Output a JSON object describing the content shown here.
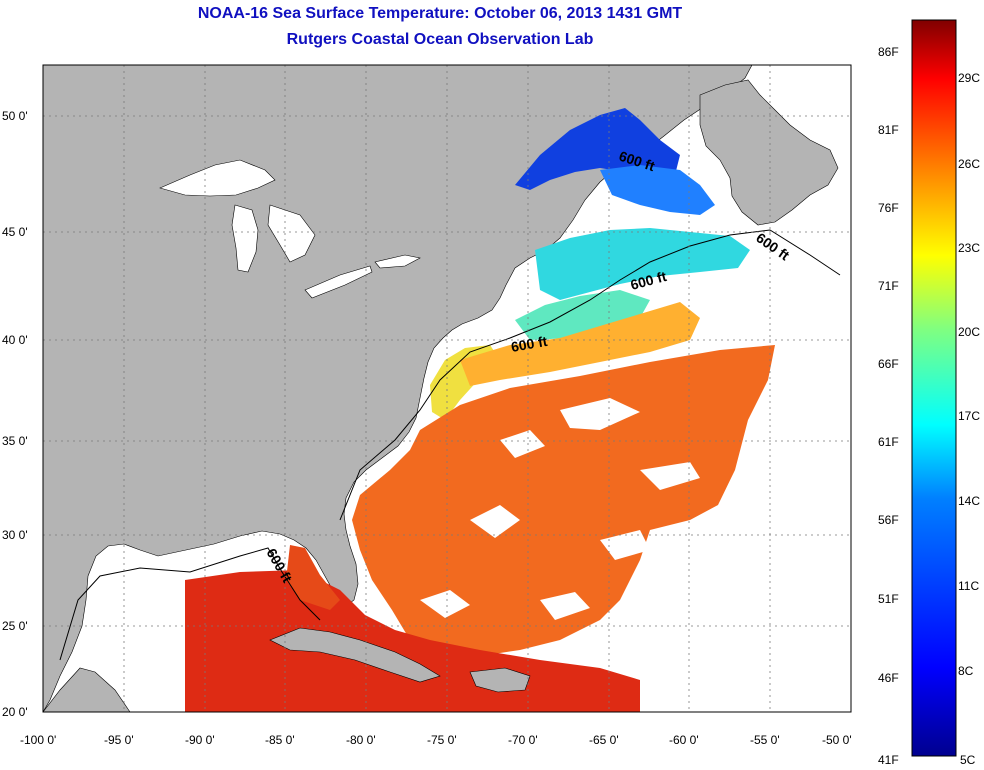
{
  "title": {
    "line1": "NOAA-16 Sea Surface Temperature:  October 06, 2013 1431 GMT",
    "line2": "Rutgers Coastal Ocean Observation Lab"
  },
  "map": {
    "lon_range": [
      -100,
      -50
    ],
    "lat_range": [
      20,
      52.5
    ],
    "lon_ticks": [
      "-100 0'",
      "-95 0'",
      "-90 0'",
      "-85 0'",
      "-80 0'",
      "-75 0'",
      "-70 0'",
      "-65 0'",
      "-60 0'",
      "-55 0'",
      "-50 0'"
    ],
    "lat_ticks": [
      "20 0'",
      "25 0'",
      "30 0'",
      "35 0'",
      "40 0'",
      "45 0'",
      "50 0'"
    ],
    "contour_labels": [
      "600 ft",
      "600 ft",
      "600 ft",
      "600 ft",
      "600 ft"
    ],
    "colors": {
      "land": "#b4b4b4",
      "water_no_data": "#ffffff",
      "grid": "#7a7a7a"
    }
  },
  "colorbar": {
    "fahrenheit_labels": [
      "86F",
      "81F",
      "76F",
      "71F",
      "66F",
      "61F",
      "56F",
      "51F",
      "46F",
      "41F"
    ],
    "celsius_labels": [
      "29C",
      "26C",
      "23C",
      "20C",
      "17C",
      "14C",
      "11C",
      "8C",
      "5C"
    ],
    "colors": [
      "#00008f",
      "#0000ff",
      "#0080ff",
      "#00ffff",
      "#80ff80",
      "#ffff00",
      "#ff8000",
      "#ff0000",
      "#800000"
    ]
  }
}
